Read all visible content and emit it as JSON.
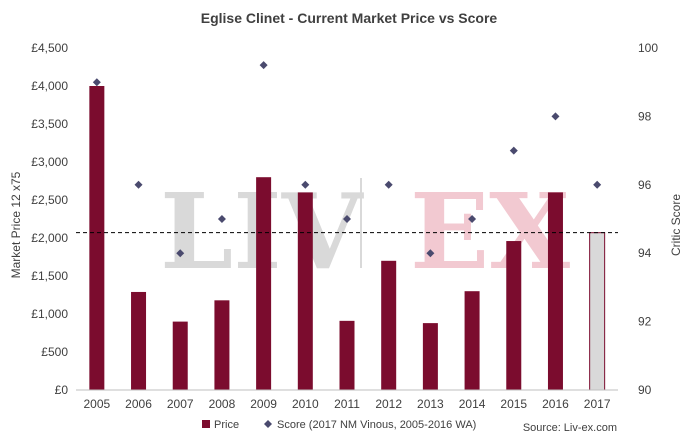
{
  "chart_data": {
    "type": "bar",
    "title": "Eglise Clinet - Current Market Price vs Score",
    "categories": [
      "2005",
      "2006",
      "2007",
      "2008",
      "2009",
      "2010",
      "2011",
      "2012",
      "2013",
      "2014",
      "2015",
      "2016",
      "2017"
    ],
    "series": [
      {
        "name": "Price",
        "type": "bar",
        "axis": "left",
        "values": [
          4000,
          1290,
          900,
          1180,
          2800,
          2600,
          910,
          1700,
          880,
          1300,
          1960,
          2600,
          2070
        ],
        "highlight_last": true
      },
      {
        "name": "Score (2017 NM Vinous, 2005-2016 WA)",
        "type": "scatter",
        "axis": "right",
        "values": [
          99,
          96,
          94,
          95,
          99.5,
          96,
          95,
          96,
          94,
          95,
          97,
          98,
          96
        ]
      }
    ],
    "reference_line": {
      "value": 2070,
      "style": "dashed"
    },
    "ylabel": "Market Price 12 x75",
    "y2label": "Critic Score",
    "ylim": [
      0,
      4500
    ],
    "y2lim": [
      90,
      100
    ],
    "yticks": [
      "£0",
      "£500",
      "£1,000",
      "£1,500",
      "£2,000",
      "£2,500",
      "£3,000",
      "£3,500",
      "£4,000",
      "£4,500"
    ],
    "y2ticks": [
      "90",
      "92",
      "94",
      "96",
      "98",
      "100"
    ],
    "legend": {
      "position": "bottom"
    },
    "source": "Source: Liv-ex.com",
    "watermark": {
      "left": "LIV",
      "right": "EX"
    },
    "colors": {
      "bar": "#7b0c2e",
      "bar_last": "#d9d9d9",
      "bar_last_border": "#7b0c2e",
      "marker": "#4a4a6e",
      "watermark_grey": "#d9d9d9",
      "watermark_pink": "#f2c9d1",
      "axis": "#bfbfbf"
    }
  }
}
